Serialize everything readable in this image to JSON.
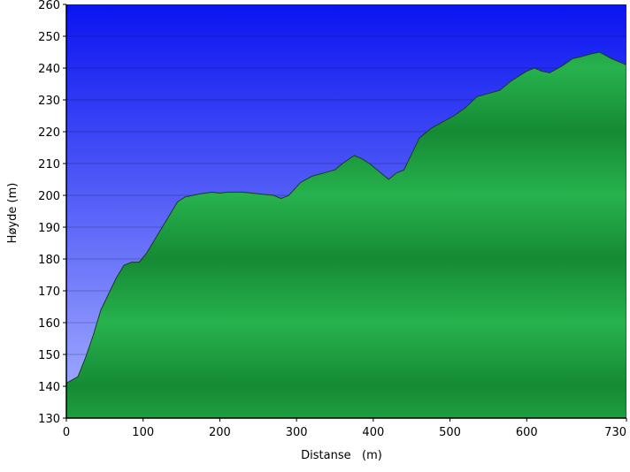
{
  "chart_data": {
    "type": "area",
    "title": "",
    "xlabel": "Distanse   (m)",
    "ylabel": "Høyde (m)",
    "xlim": [
      0,
      730
    ],
    "ylim": [
      130,
      260
    ],
    "xticks": [
      0,
      100,
      200,
      300,
      400,
      500,
      600,
      730
    ],
    "yticks": [
      130,
      140,
      150,
      160,
      170,
      180,
      190,
      200,
      210,
      220,
      230,
      240,
      250,
      260
    ],
    "grid": true,
    "legend": "none",
    "colors": {
      "sky_top": "#0a14f0",
      "sky_bottom": "#a8b2ff",
      "fill_light": "#27b24e",
      "fill_dark": "#158a34",
      "outline": "#1f3b1f"
    },
    "series": [
      {
        "x": [
          0,
          15,
          25,
          35,
          45,
          55,
          65,
          75,
          85,
          95,
          105,
          115,
          125,
          135,
          145,
          155,
          165,
          175,
          190,
          200,
          210,
          230,
          250,
          270,
          280,
          290,
          305,
          320,
          335,
          350,
          360,
          375,
          385,
          395,
          410,
          420,
          430,
          440,
          450,
          460,
          475,
          490,
          505,
          520,
          535,
          550,
          565,
          580,
          600,
          610,
          620,
          630,
          645,
          660,
          670,
          685,
          695,
          710,
          730
        ],
        "y": [
          141,
          143,
          149,
          156,
          164,
          169,
          174,
          178,
          179,
          179,
          182,
          186,
          190,
          194,
          198,
          199.5,
          200,
          200.5,
          201,
          200.7,
          201,
          201,
          200.5,
          200,
          199,
          200,
          204,
          206,
          207,
          208,
          210,
          212.5,
          211.5,
          210,
          207,
          205,
          207,
          208,
          213,
          218,
          221,
          223,
          225,
          227.5,
          231,
          232,
          233,
          236,
          239,
          240,
          239,
          238.5,
          240.5,
          243,
          243.5,
          244.5,
          245,
          243,
          241
        ]
      }
    ]
  }
}
